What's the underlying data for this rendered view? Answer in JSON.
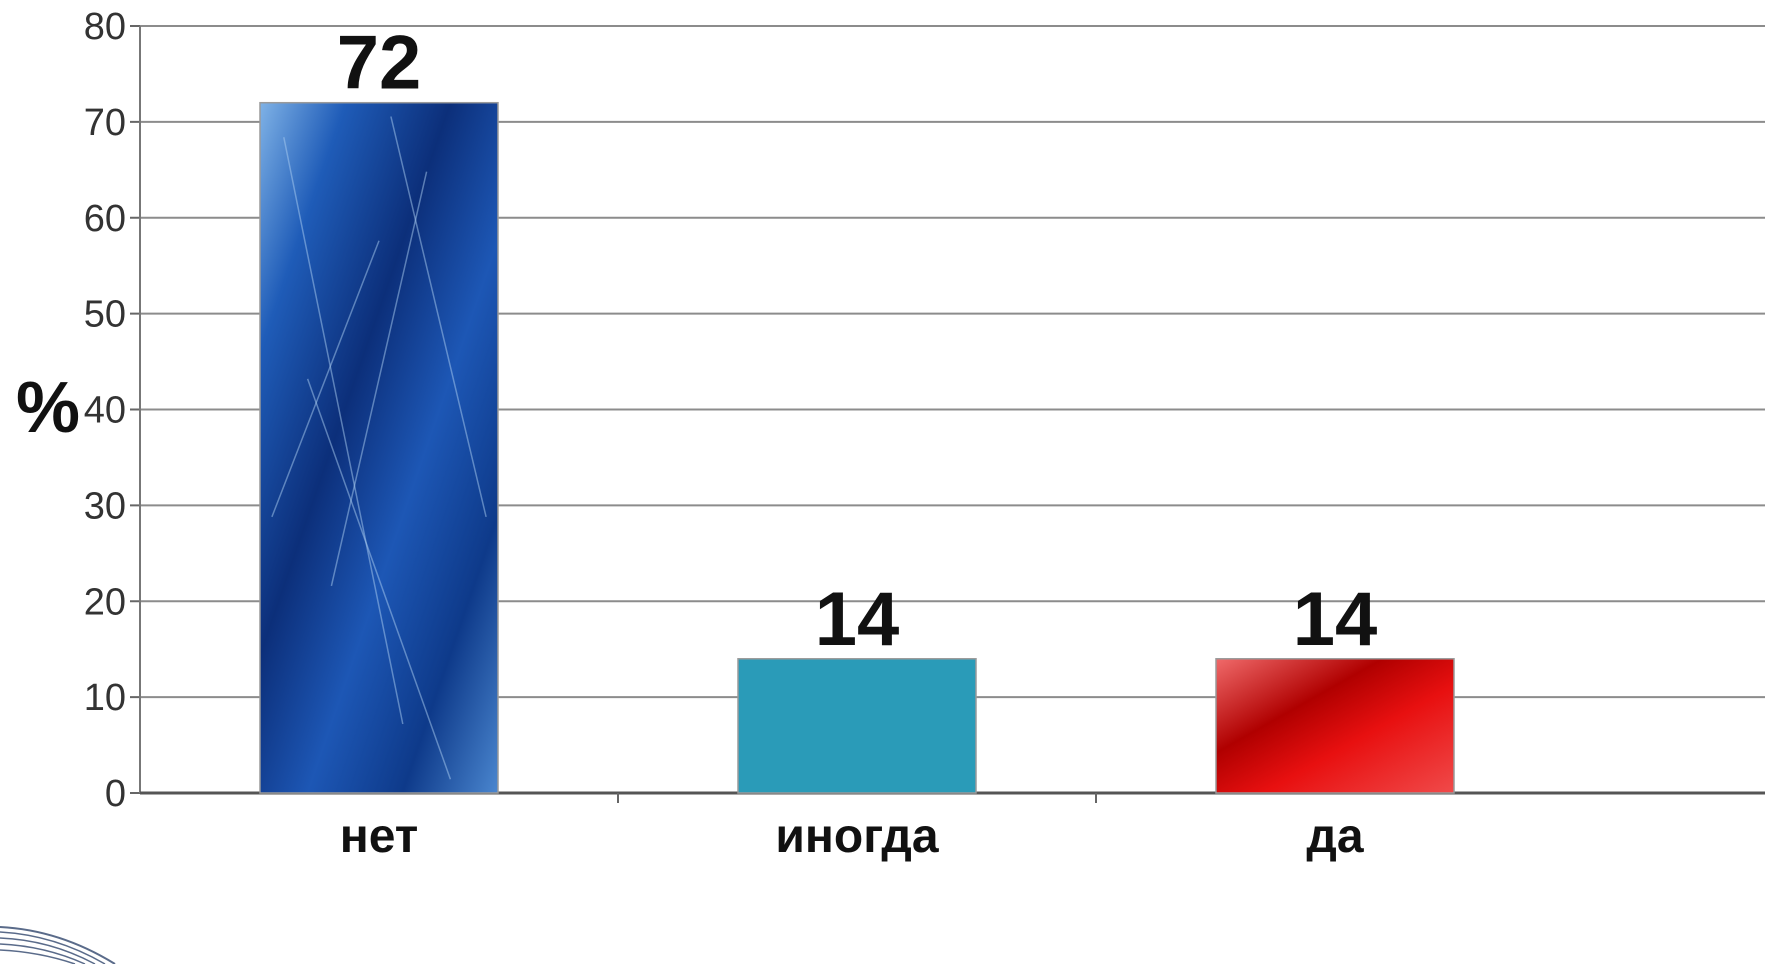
{
  "chart_data": {
    "type": "bar",
    "title": "",
    "xlabel": "",
    "ylabel": "%",
    "categories": [
      "нет",
      "иногда",
      "да"
    ],
    "values": [
      72,
      14,
      14
    ],
    "data_labels": [
      "72",
      "14",
      "14"
    ],
    "ylim": [
      0,
      80
    ],
    "yticks": [
      0,
      10,
      20,
      30,
      40,
      50,
      60,
      70,
      80
    ],
    "grid": true,
    "legend": "none",
    "colors": [
      "#1a4a9e",
      "#2a9bb8",
      "#d01010"
    ]
  }
}
